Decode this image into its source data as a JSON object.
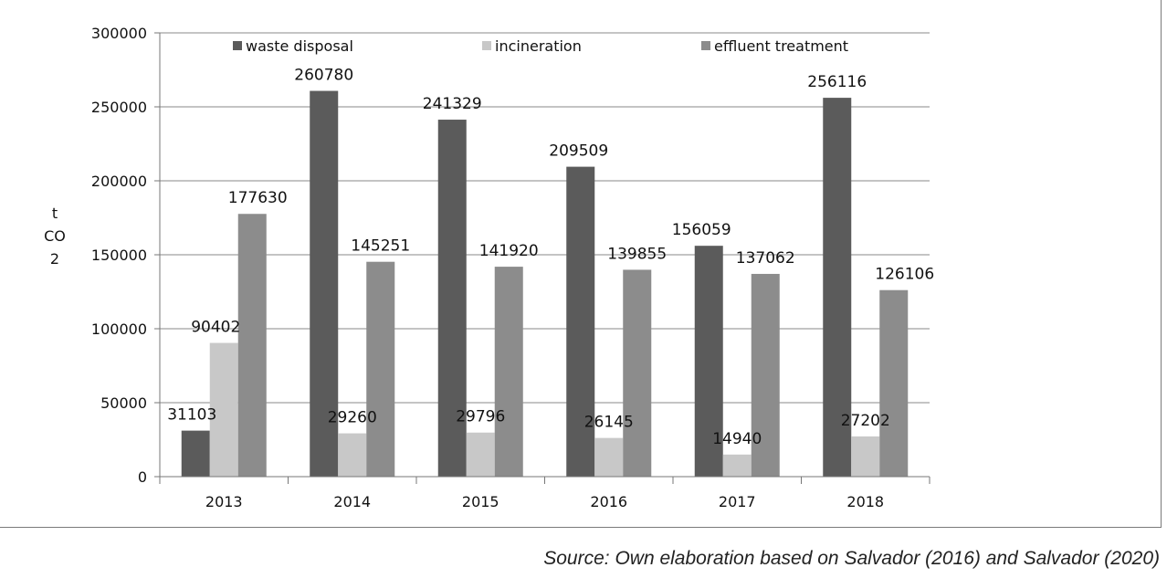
{
  "chart_data": {
    "type": "bar",
    "categories": [
      "2013",
      "2014",
      "2015",
      "2016",
      "2017",
      "2018"
    ],
    "series": [
      {
        "name": "waste disposal",
        "color": "#5b5b5b",
        "values": [
          31103,
          260780,
          241329,
          209509,
          156059,
          256116
        ]
      },
      {
        "name": "incineration",
        "color": "#c8c8c8",
        "values": [
          90402,
          29260,
          29796,
          26145,
          14940,
          27202
        ]
      },
      {
        "name": "effluent treatment",
        "color": "#8c8c8c",
        "values": [
          177630,
          145251,
          141920,
          139855,
          137062,
          126106
        ]
      }
    ],
    "ylabel": "t CO 2",
    "ylim": [
      0,
      300000
    ],
    "yticks": [
      0,
      50000,
      100000,
      150000,
      200000,
      250000,
      300000
    ],
    "grid": true,
    "legend": "top"
  },
  "caption": "Source: Own elaboration based on Salvador (2016) and Salvador (2020)"
}
